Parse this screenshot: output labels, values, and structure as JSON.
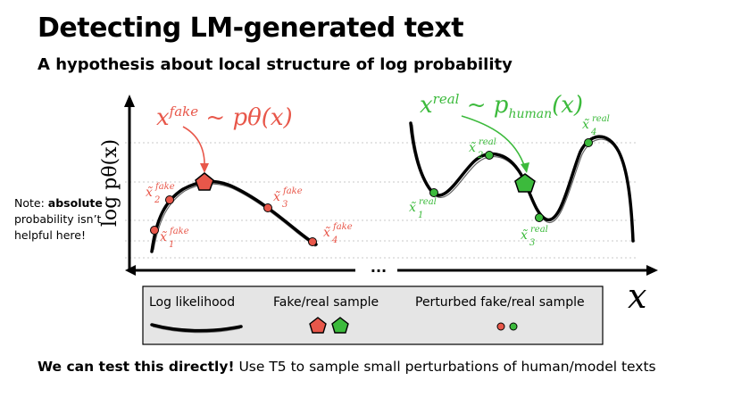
{
  "header": {
    "title": "Detecting LM-generated text",
    "subtitle": "A hypothesis about local structure of log probability"
  },
  "note": {
    "prefix": "Note: ",
    "emphasis": "absolute",
    "suffix": " probability isn’t helpful here!"
  },
  "figure": {
    "y_axis_label": "log pθ(x)",
    "x_axis_label": "x",
    "ellipsis": "...",
    "fake_annotation": {
      "base": "x",
      "sup": "fake",
      "rest": " ~ pθ(x)"
    },
    "real_annotation": {
      "base": "x",
      "sup": "real",
      "tilde": " ~ p",
      "sub": "human",
      "end": "(x)"
    },
    "fake_perturbed": [
      {
        "sup": "fake",
        "sub": "1"
      },
      {
        "sup": "fake",
        "sub": "2"
      },
      {
        "sup": "fake",
        "sub": "3"
      },
      {
        "sup": "fake",
        "sub": "4"
      }
    ],
    "real_perturbed": [
      {
        "sup": "real",
        "sub": "1"
      },
      {
        "sup": "real",
        "sub": "2"
      },
      {
        "sup": "real",
        "sub": "3"
      },
      {
        "sup": "real",
        "sub": "4"
      }
    ],
    "legend": {
      "log_likelihood": "Log likelihood",
      "sample": "Fake/real sample",
      "perturbed": "Perturbed fake/real sample"
    },
    "colors": {
      "fake": "#e8574a",
      "real": "#3cba3c",
      "legend_bg": "#e5e5e5"
    }
  },
  "bottom": {
    "emphasis": "We can test this directly!",
    "rest": " Use T5 to sample small perturbations of human/model texts"
  }
}
